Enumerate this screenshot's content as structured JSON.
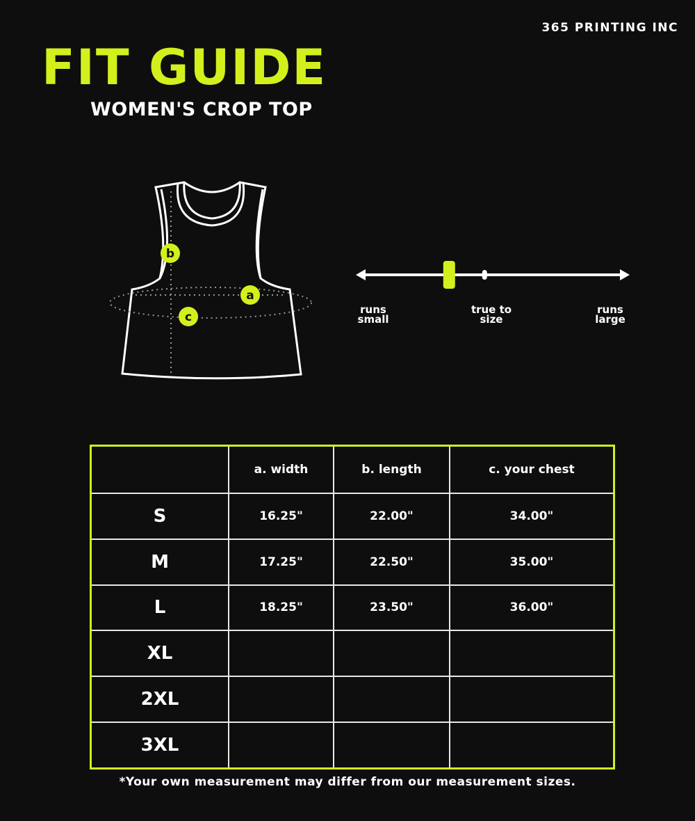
{
  "brand": "365 PRINTING INC",
  "title": "FIT GUIDE",
  "subtitle": "WOMEN'S CROP TOP",
  "colors": {
    "accent": "#d3f01c",
    "background": "#0e0e0e"
  },
  "diagram": {
    "labels": {
      "a": "a",
      "b": "b",
      "c": "c"
    }
  },
  "fit_scale": {
    "left_label": "runs small",
    "center_label": "true to size",
    "right_label": "runs large",
    "marker_position": 0.34,
    "true_to_size_position": 0.47
  },
  "table": {
    "headers": [
      "",
      "a. width",
      "b. length",
      "c. your chest"
    ],
    "rows": [
      {
        "size": "S",
        "width": "16.25\"",
        "length": "22.00\"",
        "chest": "34.00\""
      },
      {
        "size": "M",
        "width": "17.25\"",
        "length": "22.50\"",
        "chest": "35.00\""
      },
      {
        "size": "L",
        "width": "18.25\"",
        "length": "23.50\"",
        "chest": "36.00\""
      },
      {
        "size": "XL",
        "width": "",
        "length": "",
        "chest": ""
      },
      {
        "size": "2XL",
        "width": "",
        "length": "",
        "chest": ""
      },
      {
        "size": "3XL",
        "width": "",
        "length": "",
        "chest": ""
      }
    ]
  },
  "footnote": "*Your own measurement may differ from our measurement sizes."
}
